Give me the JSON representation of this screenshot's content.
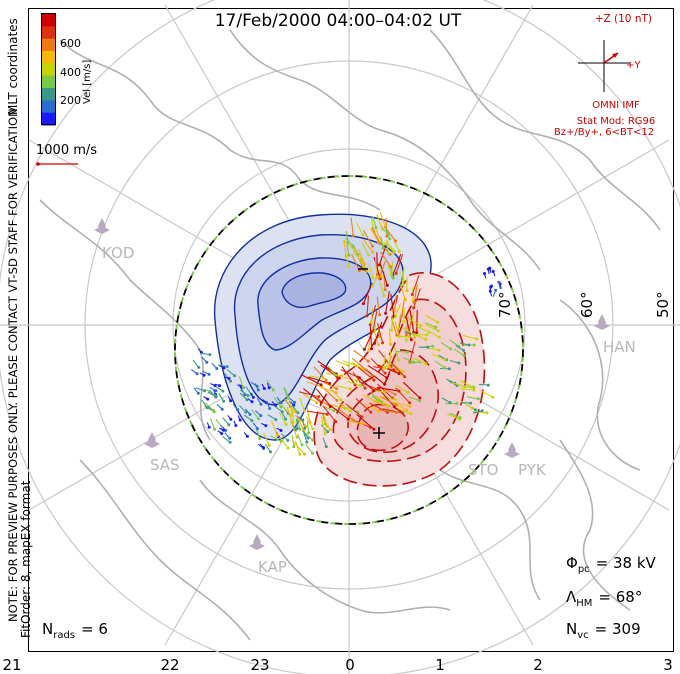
{
  "title": "17/Feb/2000 04:00–04:02 UT",
  "side_text": {
    "line1": "MLT coordinates",
    "line2": "NOTE: FOR PREVIEW PURPOSES ONLY. PLEASE CONTACT VT-SD STAFF FOR VERIFICATION.",
    "line3": "FitOrder: 8, mapEX format"
  },
  "colorbar": {
    "label": "Vel [m/s]",
    "ticks": [
      "600",
      "400",
      "200"
    ],
    "colors": [
      "#1a1aff",
      "#2a6fd0",
      "#3a9a8a",
      "#7ac943",
      "#c8d400",
      "#f4b800",
      "#f07a10",
      "#e03010",
      "#d00000"
    ]
  },
  "scale_vector": {
    "label": "1000 m/s"
  },
  "imf": {
    "magnitude": "+Z (10 nT)",
    "y_label": "+Y",
    "source": "OMNI IMF",
    "model": "Stat Mod: RG96",
    "conditions": "Bz+/By+, 6<BT<12"
  },
  "latitude_labels": [
    "70°",
    "60°",
    "50°"
  ],
  "stations": [
    "KOD",
    "SAS",
    "KAP",
    "STO",
    "PYK",
    "HAN"
  ],
  "mlt_axis": [
    "21",
    "22",
    "23",
    "0",
    "1",
    "2",
    "3"
  ],
  "stats": {
    "phi_pc": {
      "symbol": "Φ",
      "sub": "pc",
      "value": "= 38 kV"
    },
    "lambda_hm": {
      "symbol": "Λ",
      "sub": "HM",
      "value": "= 68°"
    },
    "n_vc": {
      "symbol": "N",
      "sub": "vc",
      "value": "= 309"
    },
    "n_rads": {
      "symbol": "N",
      "sub": "rads",
      "value": "= 6"
    }
  },
  "colors": {
    "dusk_cell": "#1030a0",
    "dawn_cell": "#c01010",
    "map_lines": "#c8c8c8",
    "boundary": "#000000",
    "boundary_dash": "#7ac943",
    "imf_text": "#cc0000",
    "station_marker": "#b8a8c0"
  }
}
